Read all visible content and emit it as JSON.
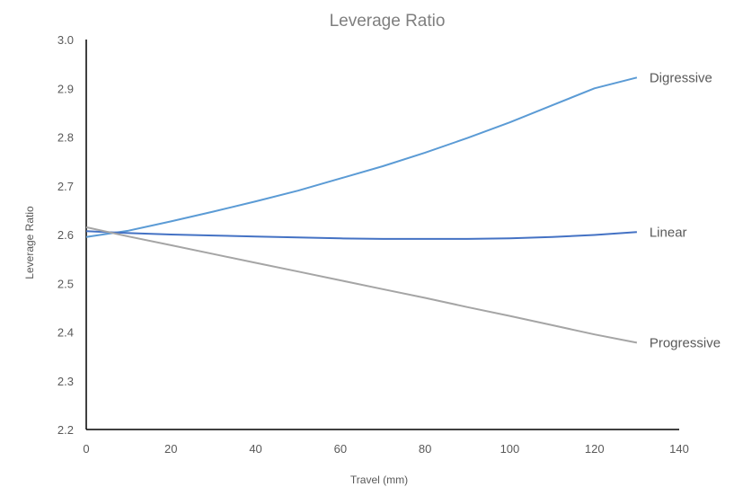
{
  "chart_data": {
    "type": "line",
    "title": "Leverage Ratio",
    "xlabel": "Travel (mm)",
    "ylabel": "Leverage Ratio",
    "xlim": [
      0,
      140
    ],
    "ylim": [
      2.2,
      3.0
    ],
    "xticks": [
      "0",
      "20",
      "40",
      "60",
      "80",
      "100",
      "120",
      "140"
    ],
    "yticks": [
      "2.2",
      "2.3",
      "2.4",
      "2.5",
      "2.6",
      "2.7",
      "2.8",
      "2.9",
      "3.0"
    ],
    "grid": false,
    "legend": "inline labels at line ends",
    "series": [
      {
        "name": "Digressive",
        "color": "#5b9bd5",
        "x": [
          0,
          10,
          20,
          30,
          40,
          50,
          60,
          70,
          80,
          90,
          100,
          110,
          120,
          130
        ],
        "y": [
          2.595,
          2.608,
          2.627,
          2.647,
          2.668,
          2.69,
          2.715,
          2.74,
          2.768,
          2.798,
          2.83,
          2.865,
          2.9,
          2.922
        ]
      },
      {
        "name": "Linear",
        "color": "#4472c4",
        "x": [
          0,
          10,
          20,
          30,
          40,
          50,
          60,
          70,
          80,
          90,
          100,
          110,
          120,
          130
        ],
        "y": [
          2.607,
          2.603,
          2.6,
          2.598,
          2.596,
          2.594,
          2.592,
          2.591,
          2.591,
          2.591,
          2.592,
          2.595,
          2.599,
          2.605
        ]
      },
      {
        "name": "Progressive",
        "color": "#a5a5a5",
        "x": [
          0,
          10,
          20,
          30,
          40,
          50,
          60,
          70,
          80,
          90,
          100,
          110,
          120,
          130
        ],
        "y": [
          2.615,
          2.596,
          2.578,
          2.56,
          2.542,
          2.524,
          2.506,
          2.488,
          2.47,
          2.451,
          2.433,
          2.414,
          2.395,
          2.378
        ]
      }
    ]
  }
}
